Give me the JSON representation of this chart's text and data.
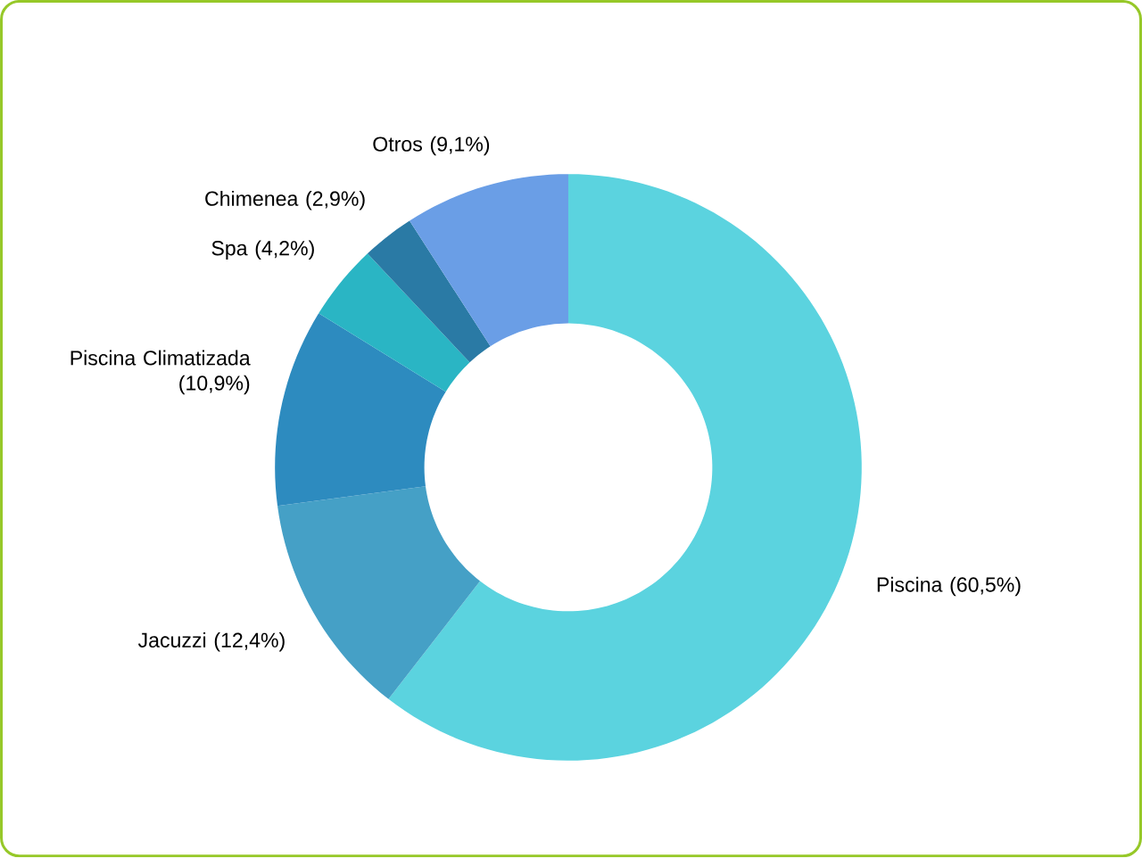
{
  "chart_data": {
    "type": "donut",
    "categories": [
      "Piscina (60,5%)",
      "Jacuzzi (12,4%)",
      "Piscina Climatizada (10,9%)",
      "Spa (4,2%)",
      "Chimenea (2,9%)",
      "Otros (9,1%)"
    ],
    "values": [
      60.5,
      12.4,
      10.9,
      4.2,
      2.9,
      9.1
    ],
    "colors": [
      "#5bd3df",
      "#45a0c6",
      "#2d8bbf",
      "#2ab5c4",
      "#2a7aa5",
      "#6a9ee6"
    ]
  }
}
